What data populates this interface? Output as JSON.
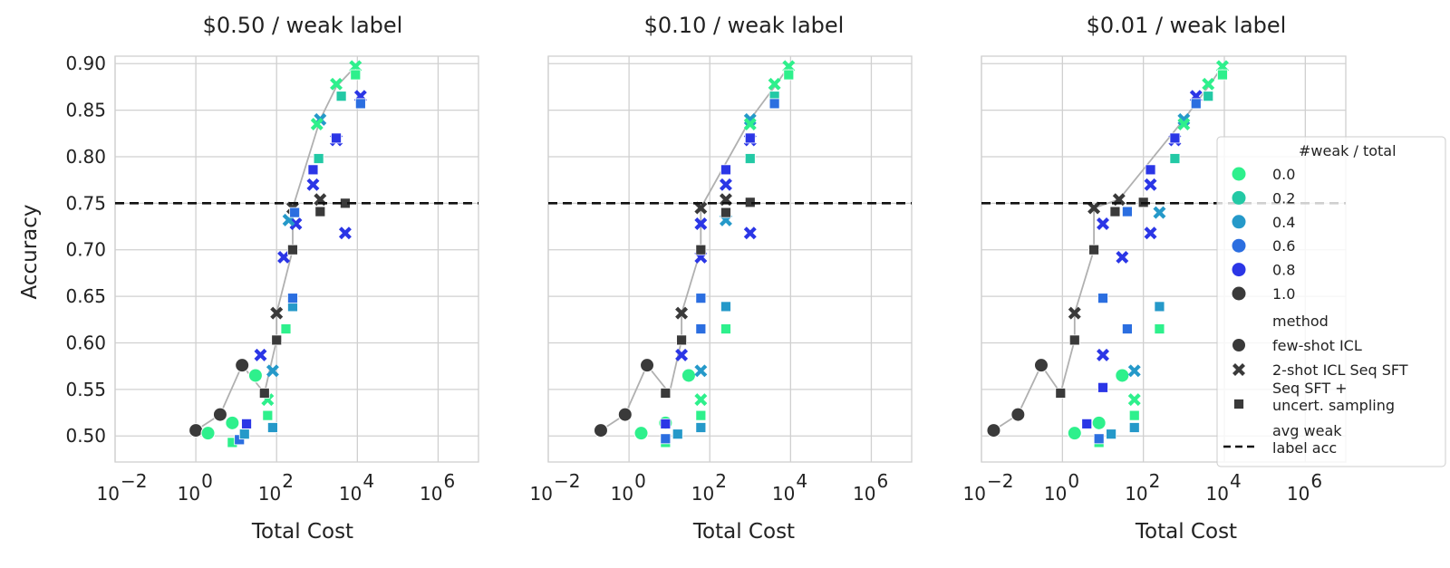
{
  "figure": {
    "ylabel": "Accuracy",
    "xlabel": "Total Cost",
    "hline_y": 0.75
  },
  "legend": {
    "hue_title": "#weak / total",
    "hue_entries": [
      "0.0",
      "0.2",
      "0.4",
      "0.6",
      "0.8",
      "1.0"
    ],
    "method_title": "method",
    "method_entries": [
      {
        "name": "few-shot ICL",
        "marker": "circle"
      },
      {
        "name": "2-shot ICL Seq SFT",
        "marker": "x"
      },
      {
        "name": "Seq SFT +\nuncert. sampling",
        "marker": "square"
      }
    ],
    "hline_label": "avg weak\nlabel acc"
  },
  "colors": {
    "0.0": "#2ef08c",
    "0.2": "#23c9a5",
    "0.4": "#2599c9",
    "0.6": "#2b6ee0",
    "0.8": "#2b36e6",
    "1.0": "#3a3a3a",
    "frontier": "#b0b0b0",
    "hline": "#111111",
    "grid": "#d0d0d0"
  },
  "chart_data": [
    {
      "type": "scatter",
      "title": "$0.50 / weak label",
      "xscale": "log",
      "xlim": [
        0.01,
        10000000
      ],
      "ylim": [
        0.472,
        0.908
      ],
      "xticks": [
        0.01,
        1,
        100,
        10000,
        1000000
      ],
      "xtick_labels": [
        "10",
        "10",
        "10",
        "10",
        "10"
      ],
      "xtick_exponents": [
        "−2",
        "0",
        "2",
        "4",
        "6"
      ],
      "yticks": [
        0.5,
        0.55,
        0.6,
        0.65,
        0.7,
        0.75,
        0.8,
        0.85,
        0.9
      ],
      "ytick_labels": [
        "0.50",
        "0.55",
        "0.60",
        "0.65",
        "0.70",
        "0.75",
        "0.80",
        "0.85",
        "0.90"
      ],
      "show_yticklabels": true,
      "frontier": [
        [
          1.0,
          0.506
        ],
        [
          4.0,
          0.523
        ],
        [
          14,
          0.576
        ],
        [
          50,
          0.546
        ],
        [
          100,
          0.603
        ],
        [
          100,
          0.632
        ],
        [
          250,
          0.7
        ],
        [
          250,
          0.745
        ],
        [
          1200,
          0.84
        ],
        [
          3000,
          0.875
        ],
        [
          9000,
          0.897
        ]
      ],
      "points": [
        {
          "x": 1.0,
          "y": 0.506,
          "m": "circle",
          "c": "1.0"
        },
        {
          "x": 4.0,
          "y": 0.523,
          "m": "circle",
          "c": "1.0"
        },
        {
          "x": 14,
          "y": 0.576,
          "m": "circle",
          "c": "1.0"
        },
        {
          "x": 2.0,
          "y": 0.503,
          "m": "circle",
          "c": "0.0"
        },
        {
          "x": 8.0,
          "y": 0.514,
          "m": "circle",
          "c": "0.0"
        },
        {
          "x": 30,
          "y": 0.565,
          "m": "circle",
          "c": "0.0"
        },
        {
          "x": 100,
          "y": 0.632,
          "m": "x",
          "c": "1.0"
        },
        {
          "x": 250,
          "y": 0.745,
          "m": "x",
          "c": "1.0"
        },
        {
          "x": 1200,
          "y": 0.754,
          "m": "x",
          "c": "1.0"
        },
        {
          "x": 40,
          "y": 0.587,
          "m": "x",
          "c": "0.8"
        },
        {
          "x": 150,
          "y": 0.692,
          "m": "x",
          "c": "0.8"
        },
        {
          "x": 300,
          "y": 0.728,
          "m": "x",
          "c": "0.8"
        },
        {
          "x": 800,
          "y": 0.77,
          "m": "x",
          "c": "0.8"
        },
        {
          "x": 3000,
          "y": 0.818,
          "m": "x",
          "c": "0.8"
        },
        {
          "x": 12000,
          "y": 0.865,
          "m": "x",
          "c": "0.8"
        },
        {
          "x": 5000,
          "y": 0.718,
          "m": "x",
          "c": "0.8"
        },
        {
          "x": 80,
          "y": 0.57,
          "m": "x",
          "c": "0.4"
        },
        {
          "x": 200,
          "y": 0.732,
          "m": "x",
          "c": "0.4"
        },
        {
          "x": 1200,
          "y": 0.84,
          "m": "x",
          "c": "0.4"
        },
        {
          "x": 60,
          "y": 0.539,
          "m": "x",
          "c": "0.0"
        },
        {
          "x": 1000,
          "y": 0.835,
          "m": "x",
          "c": "0.0"
        },
        {
          "x": 3000,
          "y": 0.878,
          "m": "x",
          "c": "0.0"
        },
        {
          "x": 9000,
          "y": 0.897,
          "m": "x",
          "c": "0.0"
        },
        {
          "x": 8.0,
          "y": 0.493,
          "m": "square",
          "c": "0.0"
        },
        {
          "x": 12,
          "y": 0.496,
          "m": "square",
          "c": "0.6"
        },
        {
          "x": 16,
          "y": 0.502,
          "m": "square",
          "c": "0.4"
        },
        {
          "x": 18,
          "y": 0.513,
          "m": "square",
          "c": "0.8"
        },
        {
          "x": 50,
          "y": 0.546,
          "m": "square",
          "c": "1.0"
        },
        {
          "x": 60,
          "y": 0.522,
          "m": "square",
          "c": "0.0"
        },
        {
          "x": 80,
          "y": 0.509,
          "m": "square",
          "c": "0.4"
        },
        {
          "x": 100,
          "y": 0.603,
          "m": "square",
          "c": "1.0"
        },
        {
          "x": 170,
          "y": 0.615,
          "m": "square",
          "c": "0.0"
        },
        {
          "x": 250,
          "y": 0.639,
          "m": "square",
          "c": "0.4"
        },
        {
          "x": 250,
          "y": 0.648,
          "m": "square",
          "c": "0.6"
        },
        {
          "x": 250,
          "y": 0.7,
          "m": "square",
          "c": "1.0"
        },
        {
          "x": 280,
          "y": 0.74,
          "m": "square",
          "c": "0.6"
        },
        {
          "x": 800,
          "y": 0.786,
          "m": "square",
          "c": "0.8"
        },
        {
          "x": 1100,
          "y": 0.798,
          "m": "square",
          "c": "0.2"
        },
        {
          "x": 1200,
          "y": 0.741,
          "m": "square",
          "c": "1.0"
        },
        {
          "x": 3000,
          "y": 0.82,
          "m": "square",
          "c": "0.8"
        },
        {
          "x": 4000,
          "y": 0.865,
          "m": "square",
          "c": "0.2"
        },
        {
          "x": 5000,
          "y": 0.75,
          "m": "square",
          "c": "1.0"
        },
        {
          "x": 9000,
          "y": 0.888,
          "m": "square",
          "c": "0.0"
        },
        {
          "x": 12000,
          "y": 0.857,
          "m": "square",
          "c": "0.6"
        }
      ]
    },
    {
      "type": "scatter",
      "title": "$0.10 / weak label",
      "xscale": "log",
      "xlim": [
        0.01,
        10000000
      ],
      "ylim": [
        0.472,
        0.908
      ],
      "xticks": [
        0.01,
        1,
        100,
        10000,
        1000000
      ],
      "xtick_labels": [
        "10",
        "10",
        "10",
        "10",
        "10"
      ],
      "xtick_exponents": [
        "−2",
        "0",
        "2",
        "4",
        "6"
      ],
      "yticks": [
        0.5,
        0.55,
        0.6,
        0.65,
        0.7,
        0.75,
        0.8,
        0.85,
        0.9
      ],
      "ytick_labels": [
        "0.50",
        "0.55",
        "0.60",
        "0.65",
        "0.70",
        "0.75",
        "0.80",
        "0.85",
        "0.90"
      ],
      "show_yticklabels": false,
      "frontier": [
        [
          0.2,
          0.506
        ],
        [
          0.8,
          0.523
        ],
        [
          2.8,
          0.576
        ],
        [
          10,
          0.546
        ],
        [
          20,
          0.603
        ],
        [
          20,
          0.632
        ],
        [
          60,
          0.7
        ],
        [
          60,
          0.745
        ],
        [
          1000,
          0.84
        ],
        [
          4000,
          0.875
        ],
        [
          9000,
          0.897
        ]
      ],
      "points": [
        {
          "x": 0.2,
          "y": 0.506,
          "m": "circle",
          "c": "1.0"
        },
        {
          "x": 0.8,
          "y": 0.523,
          "m": "circle",
          "c": "1.0"
        },
        {
          "x": 2.8,
          "y": 0.576,
          "m": "circle",
          "c": "1.0"
        },
        {
          "x": 2.0,
          "y": 0.503,
          "m": "circle",
          "c": "0.0"
        },
        {
          "x": 8.0,
          "y": 0.514,
          "m": "circle",
          "c": "0.0"
        },
        {
          "x": 30,
          "y": 0.565,
          "m": "circle",
          "c": "0.0"
        },
        {
          "x": 20,
          "y": 0.632,
          "m": "x",
          "c": "1.0"
        },
        {
          "x": 60,
          "y": 0.745,
          "m": "x",
          "c": "1.0"
        },
        {
          "x": 250,
          "y": 0.754,
          "m": "x",
          "c": "1.0"
        },
        {
          "x": 20,
          "y": 0.587,
          "m": "x",
          "c": "0.8"
        },
        {
          "x": 60,
          "y": 0.692,
          "m": "x",
          "c": "0.8"
        },
        {
          "x": 60,
          "y": 0.728,
          "m": "x",
          "c": "0.8"
        },
        {
          "x": 250,
          "y": 0.77,
          "m": "x",
          "c": "0.8"
        },
        {
          "x": 1000,
          "y": 0.818,
          "m": "x",
          "c": "0.8"
        },
        {
          "x": 1000,
          "y": 0.718,
          "m": "x",
          "c": "0.8"
        },
        {
          "x": 60,
          "y": 0.57,
          "m": "x",
          "c": "0.4"
        },
        {
          "x": 250,
          "y": 0.732,
          "m": "x",
          "c": "0.4"
        },
        {
          "x": 1000,
          "y": 0.84,
          "m": "x",
          "c": "0.4"
        },
        {
          "x": 60,
          "y": 0.539,
          "m": "x",
          "c": "0.0"
        },
        {
          "x": 1000,
          "y": 0.835,
          "m": "x",
          "c": "0.0"
        },
        {
          "x": 4000,
          "y": 0.878,
          "m": "x",
          "c": "0.0"
        },
        {
          "x": 9000,
          "y": 0.897,
          "m": "x",
          "c": "0.0"
        },
        {
          "x": 8.0,
          "y": 0.493,
          "m": "square",
          "c": "0.0"
        },
        {
          "x": 8.0,
          "y": 0.497,
          "m": "square",
          "c": "0.6"
        },
        {
          "x": 16,
          "y": 0.502,
          "m": "square",
          "c": "0.4"
        },
        {
          "x": 8.0,
          "y": 0.513,
          "m": "square",
          "c": "0.8"
        },
        {
          "x": 8.0,
          "y": 0.546,
          "m": "square",
          "c": "1.0"
        },
        {
          "x": 60,
          "y": 0.522,
          "m": "square",
          "c": "0.0"
        },
        {
          "x": 60,
          "y": 0.509,
          "m": "square",
          "c": "0.4"
        },
        {
          "x": 20,
          "y": 0.603,
          "m": "square",
          "c": "1.0"
        },
        {
          "x": 60,
          "y": 0.615,
          "m": "square",
          "c": "0.6"
        },
        {
          "x": 60,
          "y": 0.648,
          "m": "square",
          "c": "0.6"
        },
        {
          "x": 250,
          "y": 0.639,
          "m": "square",
          "c": "0.4"
        },
        {
          "x": 250,
          "y": 0.615,
          "m": "square",
          "c": "0.0"
        },
        {
          "x": 60,
          "y": 0.7,
          "m": "square",
          "c": "1.0"
        },
        {
          "x": 250,
          "y": 0.74,
          "m": "square",
          "c": "1.0"
        },
        {
          "x": 250,
          "y": 0.786,
          "m": "square",
          "c": "0.8"
        },
        {
          "x": 1000,
          "y": 0.798,
          "m": "square",
          "c": "0.2"
        },
        {
          "x": 1000,
          "y": 0.751,
          "m": "square",
          "c": "1.0"
        },
        {
          "x": 1000,
          "y": 0.82,
          "m": "square",
          "c": "0.8"
        },
        {
          "x": 4000,
          "y": 0.865,
          "m": "square",
          "c": "0.2"
        },
        {
          "x": 4000,
          "y": 0.857,
          "m": "square",
          "c": "0.6"
        },
        {
          "x": 9000,
          "y": 0.888,
          "m": "square",
          "c": "0.0"
        }
      ]
    },
    {
      "type": "scatter",
      "title": "$0.01 / weak label",
      "xscale": "log",
      "xlim": [
        0.01,
        10000000
      ],
      "ylim": [
        0.472,
        0.908
      ],
      "xticks": [
        0.01,
        1,
        100,
        10000,
        1000000
      ],
      "xtick_labels": [
        "10",
        "10",
        "10",
        "10",
        "10"
      ],
      "xtick_exponents": [
        "−2",
        "0",
        "2",
        "4",
        "6"
      ],
      "yticks": [
        0.5,
        0.55,
        0.6,
        0.65,
        0.7,
        0.75,
        0.8,
        0.85,
        0.9
      ],
      "ytick_labels": [
        "0.50",
        "0.55",
        "0.60",
        "0.65",
        "0.70",
        "0.75",
        "0.80",
        "0.85",
        "0.90"
      ],
      "show_yticklabels": false,
      "frontier": [
        [
          0.02,
          0.506
        ],
        [
          0.08,
          0.523
        ],
        [
          0.3,
          0.576
        ],
        [
          0.9,
          0.546
        ],
        [
          2.0,
          0.603
        ],
        [
          2.0,
          0.632
        ],
        [
          6.0,
          0.7
        ],
        [
          6.0,
          0.745
        ],
        [
          25,
          0.754
        ],
        [
          1000,
          0.84
        ],
        [
          4000,
          0.875
        ],
        [
          9000,
          0.897
        ]
      ],
      "points": [
        {
          "x": 0.02,
          "y": 0.506,
          "m": "circle",
          "c": "1.0"
        },
        {
          "x": 0.08,
          "y": 0.523,
          "m": "circle",
          "c": "1.0"
        },
        {
          "x": 0.3,
          "y": 0.576,
          "m": "circle",
          "c": "1.0"
        },
        {
          "x": 2.0,
          "y": 0.503,
          "m": "circle",
          "c": "0.0"
        },
        {
          "x": 8.0,
          "y": 0.514,
          "m": "circle",
          "c": "0.0"
        },
        {
          "x": 30,
          "y": 0.565,
          "m": "circle",
          "c": "0.0"
        },
        {
          "x": 2.0,
          "y": 0.632,
          "m": "x",
          "c": "1.0"
        },
        {
          "x": 6.0,
          "y": 0.745,
          "m": "x",
          "c": "1.0"
        },
        {
          "x": 25,
          "y": 0.754,
          "m": "x",
          "c": "1.0"
        },
        {
          "x": 10,
          "y": 0.587,
          "m": "x",
          "c": "0.8"
        },
        {
          "x": 10,
          "y": 0.728,
          "m": "x",
          "c": "0.8"
        },
        {
          "x": 30,
          "y": 0.692,
          "m": "x",
          "c": "0.8"
        },
        {
          "x": 150,
          "y": 0.718,
          "m": "x",
          "c": "0.8"
        },
        {
          "x": 150,
          "y": 0.77,
          "m": "x",
          "c": "0.8"
        },
        {
          "x": 600,
          "y": 0.818,
          "m": "x",
          "c": "0.8"
        },
        {
          "x": 2000,
          "y": 0.865,
          "m": "x",
          "c": "0.8"
        },
        {
          "x": 60,
          "y": 0.57,
          "m": "x",
          "c": "0.4"
        },
        {
          "x": 250,
          "y": 0.74,
          "m": "x",
          "c": "0.4"
        },
        {
          "x": 1000,
          "y": 0.84,
          "m": "x",
          "c": "0.4"
        },
        {
          "x": 60,
          "y": 0.539,
          "m": "x",
          "c": "0.0"
        },
        {
          "x": 1000,
          "y": 0.835,
          "m": "x",
          "c": "0.0"
        },
        {
          "x": 4000,
          "y": 0.878,
          "m": "x",
          "c": "0.0"
        },
        {
          "x": 9000,
          "y": 0.897,
          "m": "x",
          "c": "0.0"
        },
        {
          "x": 8.0,
          "y": 0.493,
          "m": "square",
          "c": "0.0"
        },
        {
          "x": 8.0,
          "y": 0.497,
          "m": "square",
          "c": "0.6"
        },
        {
          "x": 16,
          "y": 0.502,
          "m": "square",
          "c": "0.4"
        },
        {
          "x": 4.0,
          "y": 0.513,
          "m": "square",
          "c": "0.8"
        },
        {
          "x": 0.9,
          "y": 0.546,
          "m": "square",
          "c": "1.0"
        },
        {
          "x": 60,
          "y": 0.522,
          "m": "square",
          "c": "0.0"
        },
        {
          "x": 60,
          "y": 0.509,
          "m": "square",
          "c": "0.4"
        },
        {
          "x": 2.0,
          "y": 0.603,
          "m": "square",
          "c": "1.0"
        },
        {
          "x": 10,
          "y": 0.552,
          "m": "square",
          "c": "0.8"
        },
        {
          "x": 10,
          "y": 0.648,
          "m": "square",
          "c": "0.6"
        },
        {
          "x": 40,
          "y": 0.615,
          "m": "square",
          "c": "0.6"
        },
        {
          "x": 250,
          "y": 0.639,
          "m": "square",
          "c": "0.4"
        },
        {
          "x": 250,
          "y": 0.615,
          "m": "square",
          "c": "0.0"
        },
        {
          "x": 6.0,
          "y": 0.7,
          "m": "square",
          "c": "1.0"
        },
        {
          "x": 20,
          "y": 0.741,
          "m": "square",
          "c": "1.0"
        },
        {
          "x": 100,
          "y": 0.751,
          "m": "square",
          "c": "1.0"
        },
        {
          "x": 40,
          "y": 0.741,
          "m": "square",
          "c": "0.6"
        },
        {
          "x": 150,
          "y": 0.786,
          "m": "square",
          "c": "0.8"
        },
        {
          "x": 600,
          "y": 0.798,
          "m": "square",
          "c": "0.2"
        },
        {
          "x": 600,
          "y": 0.82,
          "m": "square",
          "c": "0.8"
        },
        {
          "x": 2000,
          "y": 0.857,
          "m": "square",
          "c": "0.6"
        },
        {
          "x": 4000,
          "y": 0.865,
          "m": "square",
          "c": "0.2"
        },
        {
          "x": 9000,
          "y": 0.888,
          "m": "square",
          "c": "0.0"
        }
      ]
    }
  ]
}
